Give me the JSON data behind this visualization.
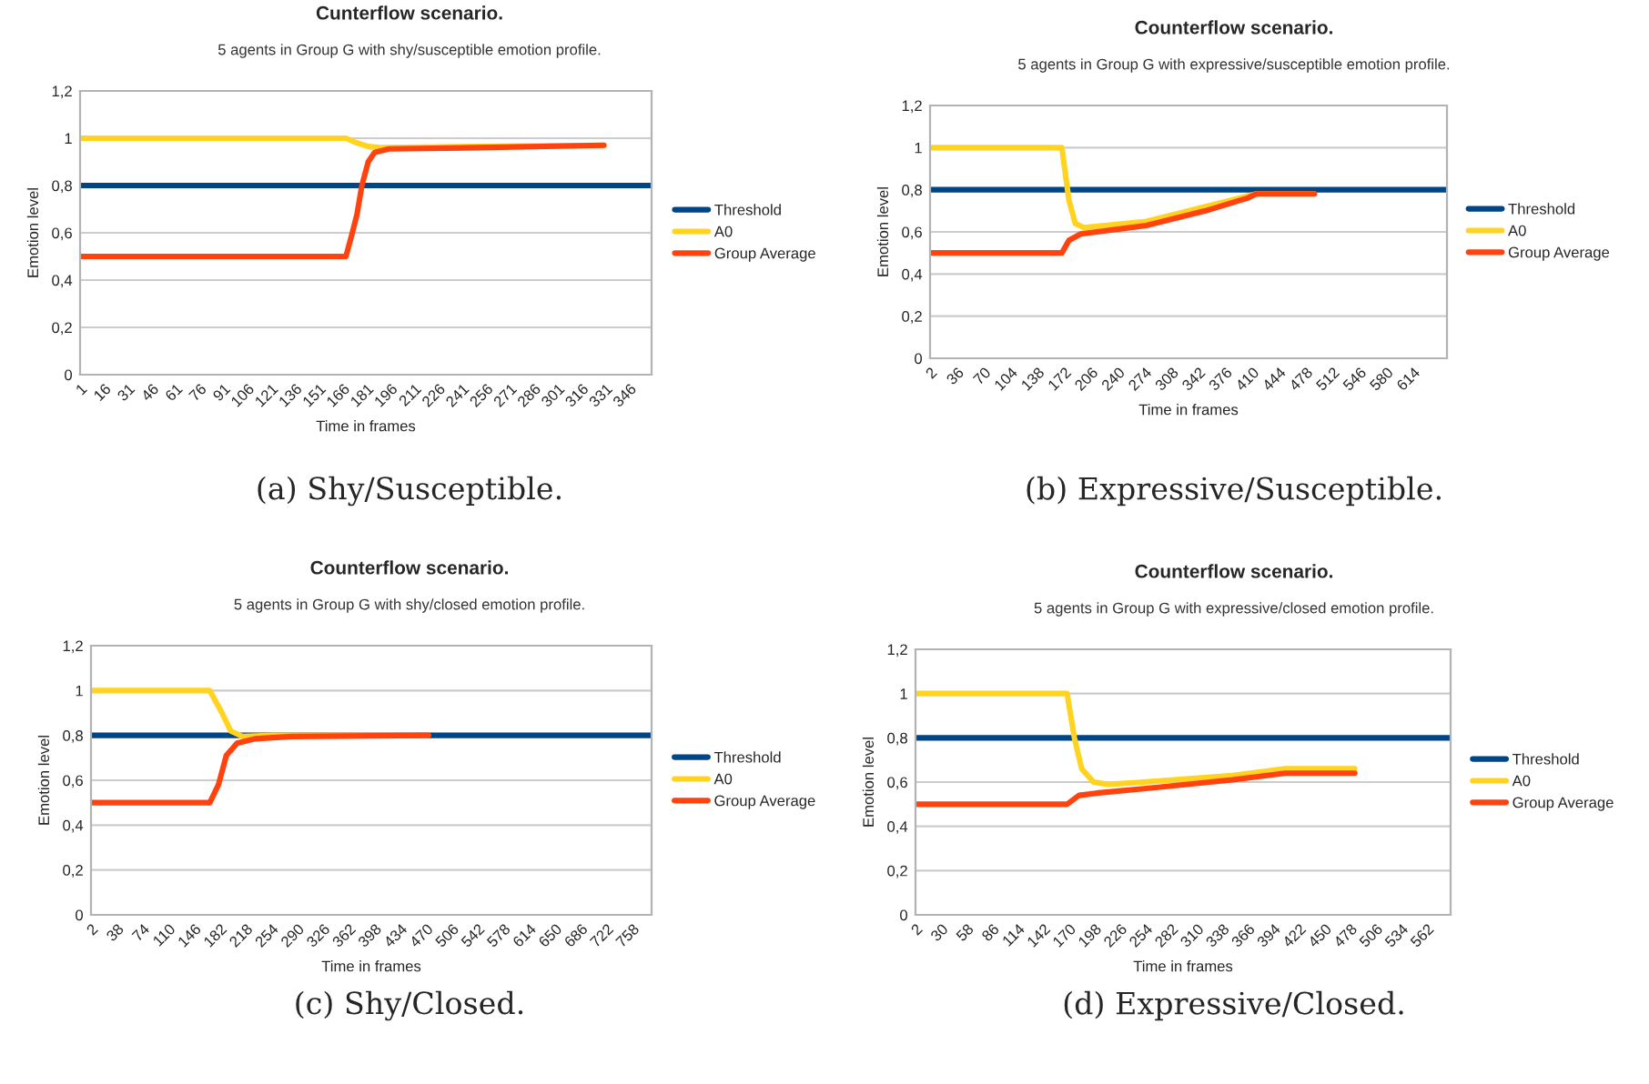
{
  "chart_data": [
    {
      "type": "line",
      "title": "Cunterflow scenario.",
      "subtitle": "5 agents in Group G with shy/susceptible emotion profile.",
      "xlabel": "Time in frames",
      "ylabel": "Emotion level",
      "annotations": [
        "(a) Shy/Susceptible."
      ],
      "xlim": [
        1,
        360
      ],
      "xticks": [
        1,
        16,
        31,
        46,
        61,
        76,
        91,
        106,
        121,
        136,
        151,
        166,
        181,
        196,
        211,
        226,
        241,
        256,
        271,
        286,
        301,
        316,
        331,
        346
      ],
      "ylim": [
        0,
        1.2
      ],
      "yticks": [
        0,
        {
          "value": 0.2,
          "label": "0,2"
        },
        {
          "value": 0.4,
          "label": "0,4"
        },
        {
          "value": 0.6,
          "label": "0,6"
        },
        {
          "value": 0.8,
          "label": "0,8"
        },
        1,
        {
          "value": 1.2,
          "label": "1,2"
        }
      ],
      "grid": "y",
      "legend": "right",
      "marker": "none",
      "line_style": "solid",
      "series": [
        {
          "name": "Threshold",
          "color": "#004586",
          "x": [
            1,
            360
          ],
          "values": [
            0.8,
            0.8
          ]
        },
        {
          "name": "A0",
          "color": "#ffd320",
          "x": [
            1,
            168,
            175,
            182,
            190,
            250,
            330
          ],
          "values": [
            1,
            1,
            0.98,
            0.965,
            0.96,
            0.965,
            0.97
          ]
        },
        {
          "name": "Group Average",
          "color": "#ff420e",
          "x": [
            1,
            168,
            172,
            175,
            178,
            182,
            186,
            195,
            250,
            330
          ],
          "values": [
            0.5,
            0.5,
            0.6,
            0.68,
            0.8,
            0.9,
            0.94,
            0.955,
            0.96,
            0.97
          ]
        }
      ]
    },
    {
      "type": "line",
      "title": "Counterflow scenario.",
      "subtitle": "5 agents in Group G with expressive/susceptible emotion profile.",
      "xlabel": "Time in frames",
      "ylabel": "Emotion level",
      "annotations": [
        "(b) Expressive/Susceptible."
      ],
      "xlim": [
        2,
        657
      ],
      "xticks": [
        2,
        36,
        70,
        104,
        138,
        172,
        206,
        240,
        274,
        308,
        342,
        376,
        410,
        444,
        478,
        512,
        546,
        580,
        614
      ],
      "ylim": [
        0,
        1.2
      ],
      "yticks": [
        0,
        {
          "value": 0.2,
          "label": "0,2"
        },
        {
          "value": 0.4,
          "label": "0,4"
        },
        {
          "value": 0.6,
          "label": "0,6"
        },
        {
          "value": 0.8,
          "label": "0,8"
        },
        1,
        {
          "value": 1.2,
          "label": "1,2"
        }
      ],
      "grid": "y",
      "legend": "right",
      "marker": "none",
      "line_style": "solid",
      "series": [
        {
          "name": "Threshold",
          "color": "#004586",
          "x": [
            2,
            657
          ],
          "values": [
            0.8,
            0.8
          ]
        },
        {
          "name": "A0",
          "color": "#ffd320",
          "x": [
            2,
            169,
            178,
            186,
            197,
            276,
            351,
            404,
            415,
            489
          ],
          "values": [
            1,
            1,
            0.75,
            0.64,
            0.62,
            0.65,
            0.72,
            0.77,
            0.78,
            0.78
          ]
        },
        {
          "name": "Group Average",
          "color": "#ff420e",
          "x": [
            2,
            169,
            178,
            193,
            276,
            351,
            404,
            415,
            489
          ],
          "values": [
            0.5,
            0.5,
            0.56,
            0.59,
            0.63,
            0.7,
            0.76,
            0.78,
            0.78
          ]
        }
      ]
    },
    {
      "type": "line",
      "title": "Counterflow scenario.",
      "subtitle": "5 agents in Group G with shy/closed emotion profile.",
      "xlabel": "Time in frames",
      "ylabel": "Emotion level",
      "annotations": [
        "(c) Shy/Closed."
      ],
      "xlim": [
        2,
        785
      ],
      "xticks": [
        2,
        38,
        74,
        110,
        146,
        182,
        218,
        254,
        290,
        326,
        362,
        398,
        434,
        470,
        506,
        542,
        578,
        614,
        650,
        686,
        722,
        758
      ],
      "ylim": [
        0,
        1.2
      ],
      "yticks": [
        0,
        {
          "value": 0.2,
          "label": "0,2"
        },
        {
          "value": 0.4,
          "label": "0,4"
        },
        {
          "value": 0.6,
          "label": "0,6"
        },
        {
          "value": 0.8,
          "label": "0,8"
        },
        1,
        {
          "value": 1.2,
          "label": "1,2"
        }
      ],
      "grid": "y",
      "legend": "right",
      "marker": "none",
      "line_style": "solid",
      "series": [
        {
          "name": "Threshold",
          "color": "#004586",
          "x": [
            2,
            785
          ],
          "values": [
            0.8,
            0.8
          ]
        },
        {
          "name": "A0",
          "color": "#ffd320",
          "x": [
            2,
            168,
            185,
            197,
            214,
            257,
            473
          ],
          "values": [
            1,
            1,
            0.9,
            0.82,
            0.795,
            0.8,
            0.8
          ]
        },
        {
          "name": "Group Average",
          "color": "#ff420e",
          "x": [
            2,
            168,
            180,
            191,
            206,
            231,
            282,
            473
          ],
          "values": [
            0.5,
            0.5,
            0.58,
            0.71,
            0.765,
            0.785,
            0.795,
            0.8
          ]
        }
      ]
    },
    {
      "type": "line",
      "title": "Counterflow scenario.",
      "subtitle": "5 agents in Group G with expressive/closed emotion profile.",
      "xlabel": "Time in frames",
      "ylabel": "Emotion level",
      "annotations": [
        "(d) Expressive/Closed."
      ],
      "xlim": [
        2,
        588
      ],
      "xticks": [
        2,
        30,
        58,
        86,
        114,
        142,
        170,
        198,
        226,
        254,
        282,
        310,
        338,
        366,
        394,
        422,
        450,
        478,
        506,
        534,
        562
      ],
      "ylim": [
        0,
        1.2
      ],
      "yticks": [
        0,
        {
          "value": 0.2,
          "label": "0,2"
        },
        {
          "value": 0.4,
          "label": "0,4"
        },
        {
          "value": 0.6,
          "label": "0,6"
        },
        {
          "value": 0.8,
          "label": "0,8"
        },
        1,
        {
          "value": 1.2,
          "label": "1,2"
        }
      ],
      "grid": "y",
      "legend": "right",
      "marker": "none",
      "line_style": "solid",
      "series": [
        {
          "name": "Threshold",
          "color": "#004586",
          "x": [
            2,
            588
          ],
          "values": [
            0.8,
            0.8
          ]
        },
        {
          "name": "A0",
          "color": "#ffd320",
          "x": [
            2,
            168,
            176,
            184,
            197,
            213,
            252,
            349,
            407,
            483
          ],
          "values": [
            1,
            1,
            0.8,
            0.66,
            0.6,
            0.59,
            0.6,
            0.63,
            0.66,
            0.66
          ]
        },
        {
          "name": "Group Average",
          "color": "#ff420e",
          "x": [
            2,
            168,
            181,
            200,
            252,
            349,
            407,
            483
          ],
          "values": [
            0.5,
            0.5,
            0.54,
            0.55,
            0.57,
            0.61,
            0.64,
            0.64
          ]
        }
      ]
    }
  ]
}
